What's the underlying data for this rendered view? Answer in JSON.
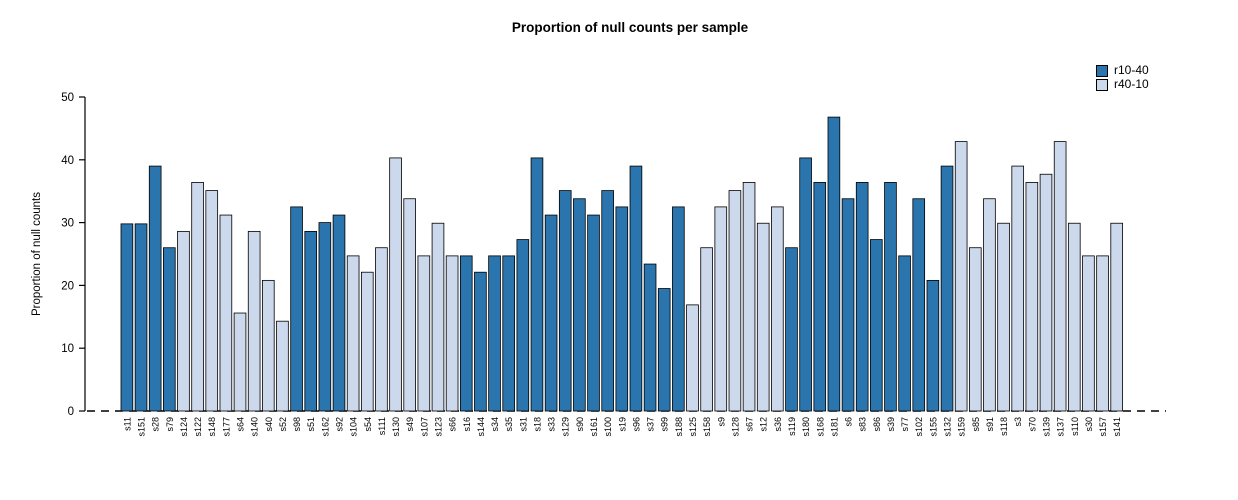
{
  "title": "Proportion of null counts per sample",
  "legend": [
    {
      "label": "r10-40",
      "color": "#2a75ad"
    },
    {
      "label": "r40-10",
      "color": "#ccd8ec"
    }
  ],
  "chart_data": {
    "type": "bar",
    "title": "Proportion of null counts per sample",
    "xlabel": "",
    "ylabel": "Proportion of null counts",
    "ylim": [
      0,
      50
    ],
    "yticks": [
      0,
      10,
      20,
      30,
      40,
      50
    ],
    "grid": false,
    "legend_position": "top-right",
    "baseline_style": "dashed",
    "groups": {
      "r10-40": "#2a75ad",
      "r40-10": "#ccd8ec"
    },
    "bars": [
      {
        "label": "s11",
        "value": 29.8,
        "group": "r10-40"
      },
      {
        "label": "s151",
        "value": 29.8,
        "group": "r10-40"
      },
      {
        "label": "s28",
        "value": 39.0,
        "group": "r10-40"
      },
      {
        "label": "s79",
        "value": 26.0,
        "group": "r10-40"
      },
      {
        "label": "s124",
        "value": 28.6,
        "group": "r40-10"
      },
      {
        "label": "s122",
        "value": 36.4,
        "group": "r40-10"
      },
      {
        "label": "s148",
        "value": 35.1,
        "group": "r40-10"
      },
      {
        "label": "s177",
        "value": 31.2,
        "group": "r40-10"
      },
      {
        "label": "s64",
        "value": 15.6,
        "group": "r40-10"
      },
      {
        "label": "s140",
        "value": 28.6,
        "group": "r40-10"
      },
      {
        "label": "s40",
        "value": 20.8,
        "group": "r40-10"
      },
      {
        "label": "s52",
        "value": 14.3,
        "group": "r40-10"
      },
      {
        "label": "s98",
        "value": 32.5,
        "group": "r10-40"
      },
      {
        "label": "s51",
        "value": 28.6,
        "group": "r10-40"
      },
      {
        "label": "s162",
        "value": 30.0,
        "group": "r10-40"
      },
      {
        "label": "s92",
        "value": 31.2,
        "group": "r10-40"
      },
      {
        "label": "s104",
        "value": 24.7,
        "group": "r40-10"
      },
      {
        "label": "s54",
        "value": 22.1,
        "group": "r40-10"
      },
      {
        "label": "s111",
        "value": 26.0,
        "group": "r40-10"
      },
      {
        "label": "s130",
        "value": 40.3,
        "group": "r40-10"
      },
      {
        "label": "s49",
        "value": 33.8,
        "group": "r40-10"
      },
      {
        "label": "s107",
        "value": 24.7,
        "group": "r40-10"
      },
      {
        "label": "s123",
        "value": 29.9,
        "group": "r40-10"
      },
      {
        "label": "s66",
        "value": 24.7,
        "group": "r40-10"
      },
      {
        "label": "s16",
        "value": 24.7,
        "group": "r10-40"
      },
      {
        "label": "s144",
        "value": 22.1,
        "group": "r10-40"
      },
      {
        "label": "s34",
        "value": 24.7,
        "group": "r10-40"
      },
      {
        "label": "s35",
        "value": 24.7,
        "group": "r10-40"
      },
      {
        "label": "s31",
        "value": 27.3,
        "group": "r10-40"
      },
      {
        "label": "s18",
        "value": 40.3,
        "group": "r10-40"
      },
      {
        "label": "s33",
        "value": 31.2,
        "group": "r10-40"
      },
      {
        "label": "s129",
        "value": 35.1,
        "group": "r10-40"
      },
      {
        "label": "s90",
        "value": 33.8,
        "group": "r10-40"
      },
      {
        "label": "s161",
        "value": 31.2,
        "group": "r10-40"
      },
      {
        "label": "s100",
        "value": 35.1,
        "group": "r10-40"
      },
      {
        "label": "s19",
        "value": 32.5,
        "group": "r10-40"
      },
      {
        "label": "s96",
        "value": 39.0,
        "group": "r10-40"
      },
      {
        "label": "s37",
        "value": 23.4,
        "group": "r10-40"
      },
      {
        "label": "s99",
        "value": 19.5,
        "group": "r10-40"
      },
      {
        "label": "s188",
        "value": 32.5,
        "group": "r10-40"
      },
      {
        "label": "s125",
        "value": 16.9,
        "group": "r40-10"
      },
      {
        "label": "s158",
        "value": 26.0,
        "group": "r40-10"
      },
      {
        "label": "s9",
        "value": 32.5,
        "group": "r40-10"
      },
      {
        "label": "s128",
        "value": 35.1,
        "group": "r40-10"
      },
      {
        "label": "s67",
        "value": 36.4,
        "group": "r40-10"
      },
      {
        "label": "s12",
        "value": 29.9,
        "group": "r40-10"
      },
      {
        "label": "s36",
        "value": 32.5,
        "group": "r40-10"
      },
      {
        "label": "s119",
        "value": 26.0,
        "group": "r10-40"
      },
      {
        "label": "s180",
        "value": 40.3,
        "group": "r10-40"
      },
      {
        "label": "s168",
        "value": 36.4,
        "group": "r10-40"
      },
      {
        "label": "s181",
        "value": 46.8,
        "group": "r10-40"
      },
      {
        "label": "s6",
        "value": 33.8,
        "group": "r10-40"
      },
      {
        "label": "s83",
        "value": 36.4,
        "group": "r10-40"
      },
      {
        "label": "s86",
        "value": 27.3,
        "group": "r10-40"
      },
      {
        "label": "s39",
        "value": 36.4,
        "group": "r10-40"
      },
      {
        "label": "s77",
        "value": 24.7,
        "group": "r10-40"
      },
      {
        "label": "s102",
        "value": 33.8,
        "group": "r10-40"
      },
      {
        "label": "s155",
        "value": 20.8,
        "group": "r10-40"
      },
      {
        "label": "s132",
        "value": 39.0,
        "group": "r10-40"
      },
      {
        "label": "s159",
        "value": 42.9,
        "group": "r40-10"
      },
      {
        "label": "s85",
        "value": 26.0,
        "group": "r40-10"
      },
      {
        "label": "s91",
        "value": 33.8,
        "group": "r40-10"
      },
      {
        "label": "s118",
        "value": 29.9,
        "group": "r40-10"
      },
      {
        "label": "s3",
        "value": 39.0,
        "group": "r40-10"
      },
      {
        "label": "s70",
        "value": 36.4,
        "group": "r40-10"
      },
      {
        "label": "s139",
        "value": 37.7,
        "group": "r40-10"
      },
      {
        "label": "s137",
        "value": 42.9,
        "group": "r40-10"
      },
      {
        "label": "s110",
        "value": 29.9,
        "group": "r40-10"
      },
      {
        "label": "s30",
        "value": 24.7,
        "group": "r40-10"
      },
      {
        "label": "s157",
        "value": 24.7,
        "group": "r40-10"
      },
      {
        "label": "s141",
        "value": 29.9,
        "group": "r40-10"
      }
    ]
  }
}
